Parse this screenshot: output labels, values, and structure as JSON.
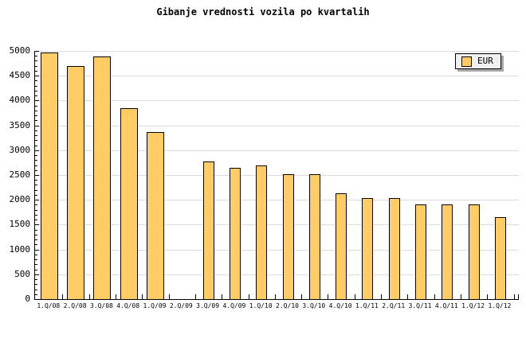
{
  "chart_data": {
    "type": "bar",
    "title": "Gibanje vrednosti vozila po kvartalih",
    "xlabel": "",
    "ylabel": "",
    "categories": [
      "1.Q/08",
      "2.Q/08",
      "3.Q/08",
      "4.Q/08",
      "1.Q/09",
      "2.Q/09",
      "3.Q/09",
      "4.Q/09",
      "1.Q/10",
      "2.Q/10",
      "3.Q/10",
      "4.Q/10",
      "1.Q/11",
      "2.Q/11",
      "3.Q/11",
      "4.Q/11",
      "1.Q/12",
      "1.Q/12"
    ],
    "series": [
      {
        "name": "EUR",
        "values": [
          4970,
          4700,
          4890,
          3840,
          3370,
          null,
          2770,
          2650,
          2700,
          2510,
          2510,
          2130,
          2040,
          2040,
          1900,
          1900,
          1900,
          1650
        ]
      }
    ],
    "ylim": [
      0,
      5000
    ],
    "ytick_step": 500,
    "y_minor_step": 100,
    "grid": "horizontal-major",
    "legend_position": "top-right",
    "layout": {
      "bar_width_wide": 22,
      "bar_width_narrow": 14,
      "wide_count": 5
    },
    "colors": {
      "background": "#FFFFFF",
      "bar_fill": "#FFCC66",
      "bar_border": "#000000",
      "grid": "#DCDCDC",
      "axis": "#000000",
      "legend_bg": "#F0F0F0",
      "legend_shadow": "#A8A8A8"
    }
  }
}
